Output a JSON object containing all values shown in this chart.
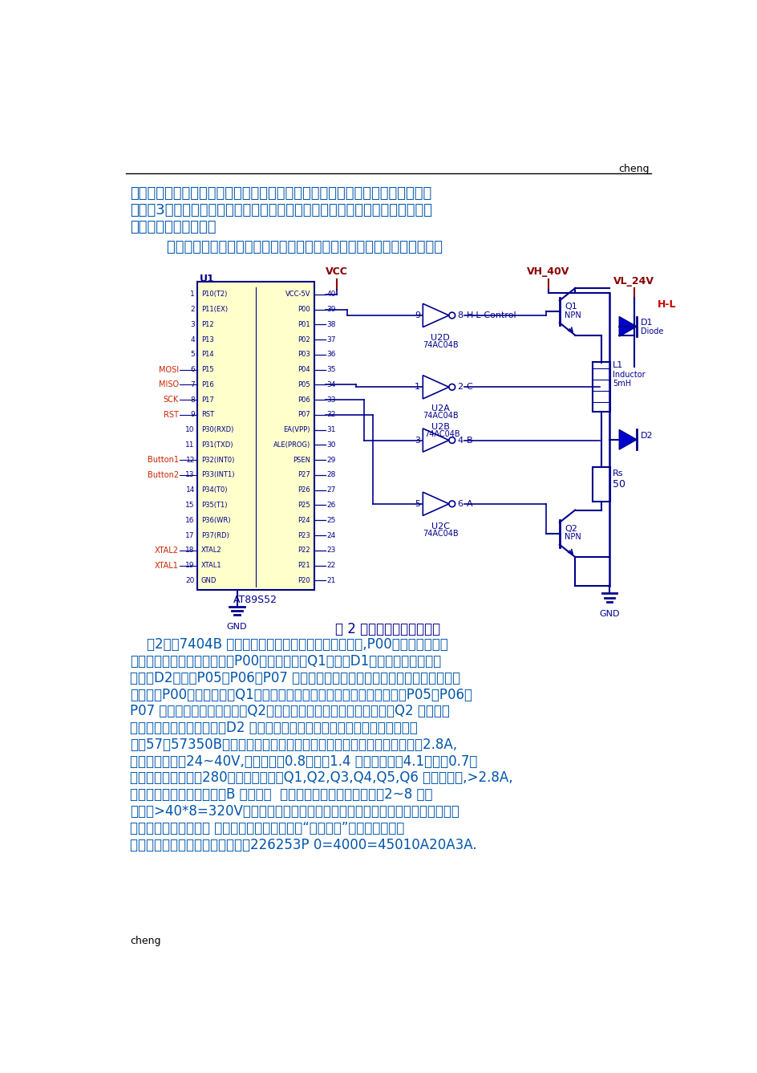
{
  "page_bg": "#ffffff",
  "header_text": "cheng",
  "footer_text": "cheng",
  "figure_caption": "图 2 相与单片机的连接图。",
  "top_para_lines": [
    "相同。在高频段通过转换电源电压提高电流响应速度，但仍需要在绕组回路中串",
    "联电阻3。并没有摆脱单电压驱动的弱点。另外，将频率划分为高、低两段，使",
    "特性不连续，有突变。"
  ],
  "intro_line": "        双电压驱动的三相双拍步进电机驱动控制系统设计的主要电路结构如下：",
  "bottom_paragraphs": [
    "    图2中的7404B 反相器用来给功率三极管提供驱动信号,P00用来输出高频和",
    "低频脉冲时的控制选择信号，P00为低电平时，Q1导通，D1截止，低电压源不起",
    "作用，D2截止，P05，P06，P07 输出高频脉冲，使得高电压源作用，使得电流响",
    "应变快；P00为高电平时，Q1截止，高电压源不起作用，低电压源作用，P05，P06，",
    "P07 输出低频脉冲，经三极管Q2，在线圈上产生低电压的脉冲电源。Q2 截止时，",
    "因线圈电感电流不可突变，D2 起续流的作用，使能量消耗在电阻上。电机选用",
    "三相57歐57350B型号的步进电机。技术指标：三相混合式，线电流有效偵2.8A,",
    "驱动电压：直流24~40V,最大静转矠0.8线电阻1.4 欧，线电感，4.1，重量0.7，",
    "最大空载启动转速：280因此功率开关管Q1,Q2,Q3,Q4,Q5,Q6 正常工作时,>2.8A,",
    "由于电路上存在电感，基极B 开路时，  可能达到的电压为安全电压的2~8 倍，",
    "因此选>40*8=320V，另外一个因素是有功率开关管的集电极允许耗散功率（），",
    "前两者的指标越大，则 也越大，一般来讲，本着“大能代小”的原则来选择。",
    "根据以上参数，可选择功率开关管226253P 0=4000=45010A20A3A."
  ]
}
